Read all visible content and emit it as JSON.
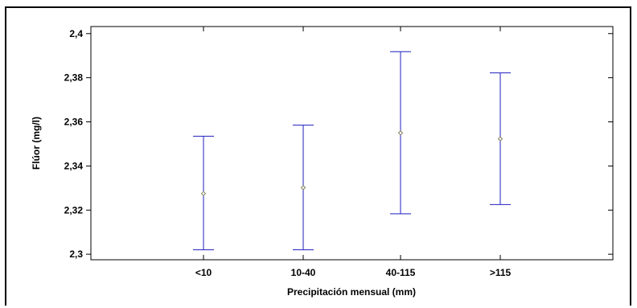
{
  "chart_data": {
    "type": "scatter",
    "subtype": "means-with-interval-bars",
    "title": "",
    "xlabel": "Precipitación mensual (mm)",
    "ylabel": "Flúor (mg/l)",
    "categories": [
      "<10",
      "10-40",
      "40-115",
      ">115"
    ],
    "means": [
      2.3275,
      2.3302,
      2.355,
      2.3523
    ],
    "lower": [
      2.302,
      2.302,
      2.3183,
      2.3225
    ],
    "upper": [
      2.3535,
      2.3585,
      2.3918,
      2.3822
    ],
    "ylim": [
      2.2975,
      2.4032
    ],
    "y_ticks": [
      2.3,
      2.32,
      2.34,
      2.36,
      2.38,
      2.4
    ],
    "y_tick_labels": [
      "2,3",
      "2,32",
      "2,34",
      "2,36",
      "2,38",
      "2,4"
    ],
    "grid": false,
    "legend": "none",
    "colors": {
      "interval": "#1f1fbf",
      "mean_marker": "#808060",
      "axis": "#000000"
    }
  }
}
